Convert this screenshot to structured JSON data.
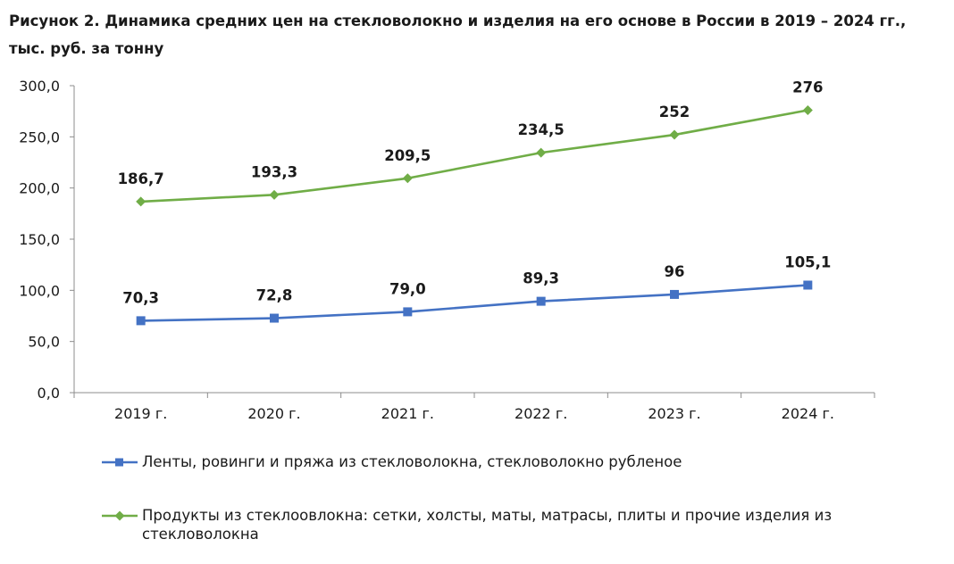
{
  "title": "Рисунок 2. Динамика средних цен на стекловолокно и изделия на его основе в России в 2019 – 2024 гг., тыс. руб. за тонну",
  "chart_data": {
    "type": "line",
    "categories": [
      "2019 г.",
      "2020 г.",
      "2021 г.",
      "2022 г.",
      "2023 г.",
      "2024 г."
    ],
    "ylim": [
      0,
      300
    ],
    "yticks": [
      "0,0",
      "50,0",
      "100,0",
      "150,0",
      "200,0",
      "250,0",
      "300,0"
    ],
    "grid": false,
    "legend_position": "bottom",
    "series": [
      {
        "name": "Ленты, ровинги и пряжа из стекловолокна, стекловолокно рубленое",
        "values": [
          70.3,
          72.8,
          79.0,
          89.3,
          96,
          105.1
        ],
        "labels": [
          "70,3",
          "72,8",
          "79,0",
          "89,3",
          "96",
          "105,1"
        ],
        "color": "#4472C4",
        "marker": "square"
      },
      {
        "name": "Продукты из стеклоовлокна: сетки, холсты, маты, матрасы, плиты и прочие изделия из стекловолокна",
        "values": [
          186.7,
          193.3,
          209.5,
          234.5,
          252,
          276
        ],
        "labels": [
          "186,7",
          "193,3",
          "209,5",
          "234,5",
          "252",
          "276"
        ],
        "color": "#70AD47",
        "marker": "diamond"
      }
    ]
  }
}
